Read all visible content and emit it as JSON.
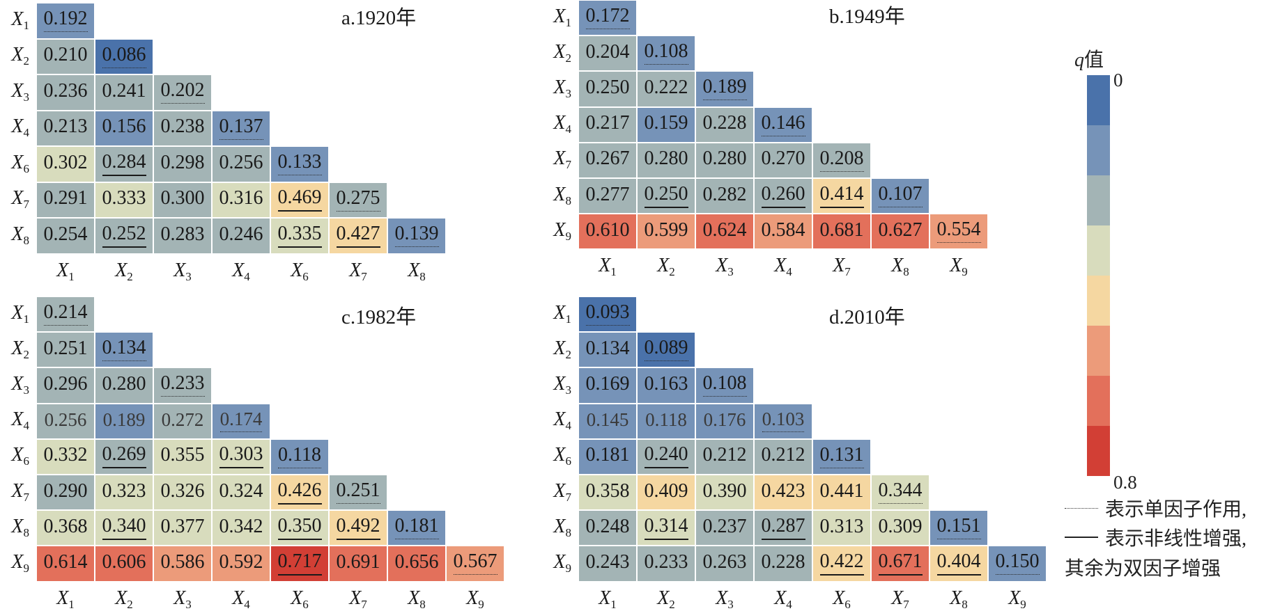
{
  "chart_data": [
    {
      "type": "heatmap",
      "title": "a.1920年",
      "y_labels": [
        "X1",
        "X2",
        "X3",
        "X4",
        "X6",
        "X7",
        "X8"
      ],
      "x_labels": [
        "X1",
        "X2",
        "X3",
        "X4",
        "X6",
        "X7",
        "X8"
      ],
      "rows": [
        [
          0.192
        ],
        [
          0.21,
          0.086
        ],
        [
          0.236,
          0.241,
          0.202
        ],
        [
          0.213,
          0.156,
          0.238,
          0.137
        ],
        [
          0.302,
          0.284,
          0.298,
          0.256,
          0.133
        ],
        [
          0.291,
          0.333,
          0.3,
          0.316,
          0.469,
          0.275
        ],
        [
          0.254,
          0.252,
          0.283,
          0.246,
          0.335,
          0.427,
          0.139
        ]
      ],
      "marks": [
        [
          "single"
        ],
        [
          "",
          "single"
        ],
        [
          "",
          "",
          "single"
        ],
        [
          "",
          "",
          "",
          "single"
        ],
        [
          "",
          "nonlinear",
          "",
          "",
          "single"
        ],
        [
          "",
          "",
          "",
          "",
          "nonlinear",
          "single"
        ],
        [
          "",
          "nonlinear",
          "",
          "",
          "nonlinear",
          "nonlinear",
          "single"
        ]
      ],
      "light_rows": []
    },
    {
      "type": "heatmap",
      "title": "b.1949年",
      "y_labels": [
        "X1",
        "X2",
        "X3",
        "X4",
        "X7",
        "X8",
        "X9"
      ],
      "x_labels": [
        "X1",
        "X2",
        "X3",
        "X4",
        "X7",
        "X8",
        "X9"
      ],
      "rows": [
        [
          0.172
        ],
        [
          0.204,
          0.108
        ],
        [
          0.25,
          0.222,
          0.189
        ],
        [
          0.217,
          0.159,
          0.228,
          0.146
        ],
        [
          0.267,
          0.28,
          0.28,
          0.27,
          0.208
        ],
        [
          0.277,
          0.25,
          0.282,
          0.26,
          0.414,
          0.107
        ],
        [
          0.61,
          0.599,
          0.624,
          0.584,
          0.681,
          0.627,
          0.554
        ]
      ],
      "marks": [
        [
          "single"
        ],
        [
          "",
          "single"
        ],
        [
          "",
          "",
          "single"
        ],
        [
          "",
          "",
          "",
          "single"
        ],
        [
          "",
          "",
          "",
          "",
          "single"
        ],
        [
          "",
          "nonlinear",
          "",
          "nonlinear",
          "nonlinear",
          "single"
        ],
        [
          "",
          "",
          "",
          "",
          "",
          "",
          "single"
        ]
      ],
      "light_rows": []
    },
    {
      "type": "heatmap",
      "title": "c.1982年",
      "y_labels": [
        "X1",
        "X2",
        "X3",
        "X4",
        "X6",
        "X7",
        "X8",
        "X9"
      ],
      "x_labels": [
        "X1",
        "X2",
        "X3",
        "X4",
        "X6",
        "X7",
        "X8",
        "X9"
      ],
      "rows": [
        [
          0.214
        ],
        [
          0.251,
          0.134
        ],
        [
          0.296,
          0.28,
          0.233
        ],
        [
          0.256,
          0.189,
          0.272,
          0.174
        ],
        [
          0.332,
          0.269,
          0.355,
          0.303,
          0.118
        ],
        [
          0.29,
          0.323,
          0.326,
          0.324,
          0.426,
          0.251
        ],
        [
          0.368,
          0.34,
          0.377,
          0.342,
          0.35,
          0.492,
          0.181
        ],
        [
          0.614,
          0.606,
          0.586,
          0.592,
          0.717,
          0.691,
          0.656,
          0.567
        ]
      ],
      "marks": [
        [
          "single"
        ],
        [
          "",
          "single"
        ],
        [
          "",
          "",
          "single"
        ],
        [
          "",
          "",
          "",
          "single"
        ],
        [
          "",
          "nonlinear",
          "",
          "nonlinear",
          "single"
        ],
        [
          "",
          "",
          "",
          "",
          "nonlinear",
          "single"
        ],
        [
          "",
          "nonlinear",
          "",
          "",
          "nonlinear",
          "nonlinear",
          "single"
        ],
        [
          "",
          "",
          "",
          "",
          "nonlinear",
          "",
          "",
          "single"
        ]
      ],
      "light_rows": [
        3
      ]
    },
    {
      "type": "heatmap",
      "title": "d.2010年",
      "y_labels": [
        "X1",
        "X2",
        "X3",
        "X4",
        "X6",
        "X7",
        "X8",
        "X9"
      ],
      "x_labels": [
        "X1",
        "X2",
        "X3",
        "X4",
        "X6",
        "X7",
        "X8",
        "X9"
      ],
      "rows": [
        [
          0.093
        ],
        [
          0.134,
          0.089
        ],
        [
          0.169,
          0.163,
          0.108
        ],
        [
          0.145,
          0.118,
          0.176,
          0.103
        ],
        [
          0.181,
          0.24,
          0.212,
          0.212,
          0.131
        ],
        [
          0.358,
          0.409,
          0.39,
          0.423,
          0.441,
          0.344
        ],
        [
          0.248,
          0.314,
          0.237,
          0.287,
          0.313,
          0.309,
          0.151
        ],
        [
          0.243,
          0.233,
          0.263,
          0.228,
          0.422,
          0.671,
          0.404,
          0.15
        ]
      ],
      "marks": [
        [
          "single"
        ],
        [
          "",
          "single"
        ],
        [
          "",
          "",
          "single"
        ],
        [
          "",
          "",
          "",
          "single"
        ],
        [
          "",
          "nonlinear",
          "",
          "",
          "single"
        ],
        [
          "",
          "",
          "",
          "",
          "",
          "single"
        ],
        [
          "",
          "nonlinear",
          "",
          "nonlinear",
          "",
          "",
          "single"
        ],
        [
          "",
          "",
          "",
          "",
          "nonlinear",
          "nonlinear",
          "nonlinear",
          "single"
        ]
      ],
      "light_rows": [
        3
      ]
    }
  ],
  "legend": {
    "title_q": "q",
    "title_suffix": "值",
    "min_label": "0",
    "max_label": "0.8",
    "range": [
      0,
      0.8
    ],
    "colors": [
      "#4a72aa",
      "#7693b8",
      "#a3b4b5",
      "#d8dcbd",
      "#f5d7a1",
      "#ec9b7a",
      "#e3705b",
      "#d23f35"
    ]
  },
  "notes": {
    "dotted_text": "表示单因子作用,",
    "solid_text": "表示非线性增强,",
    "rest_text": "其余为双因子增强"
  }
}
